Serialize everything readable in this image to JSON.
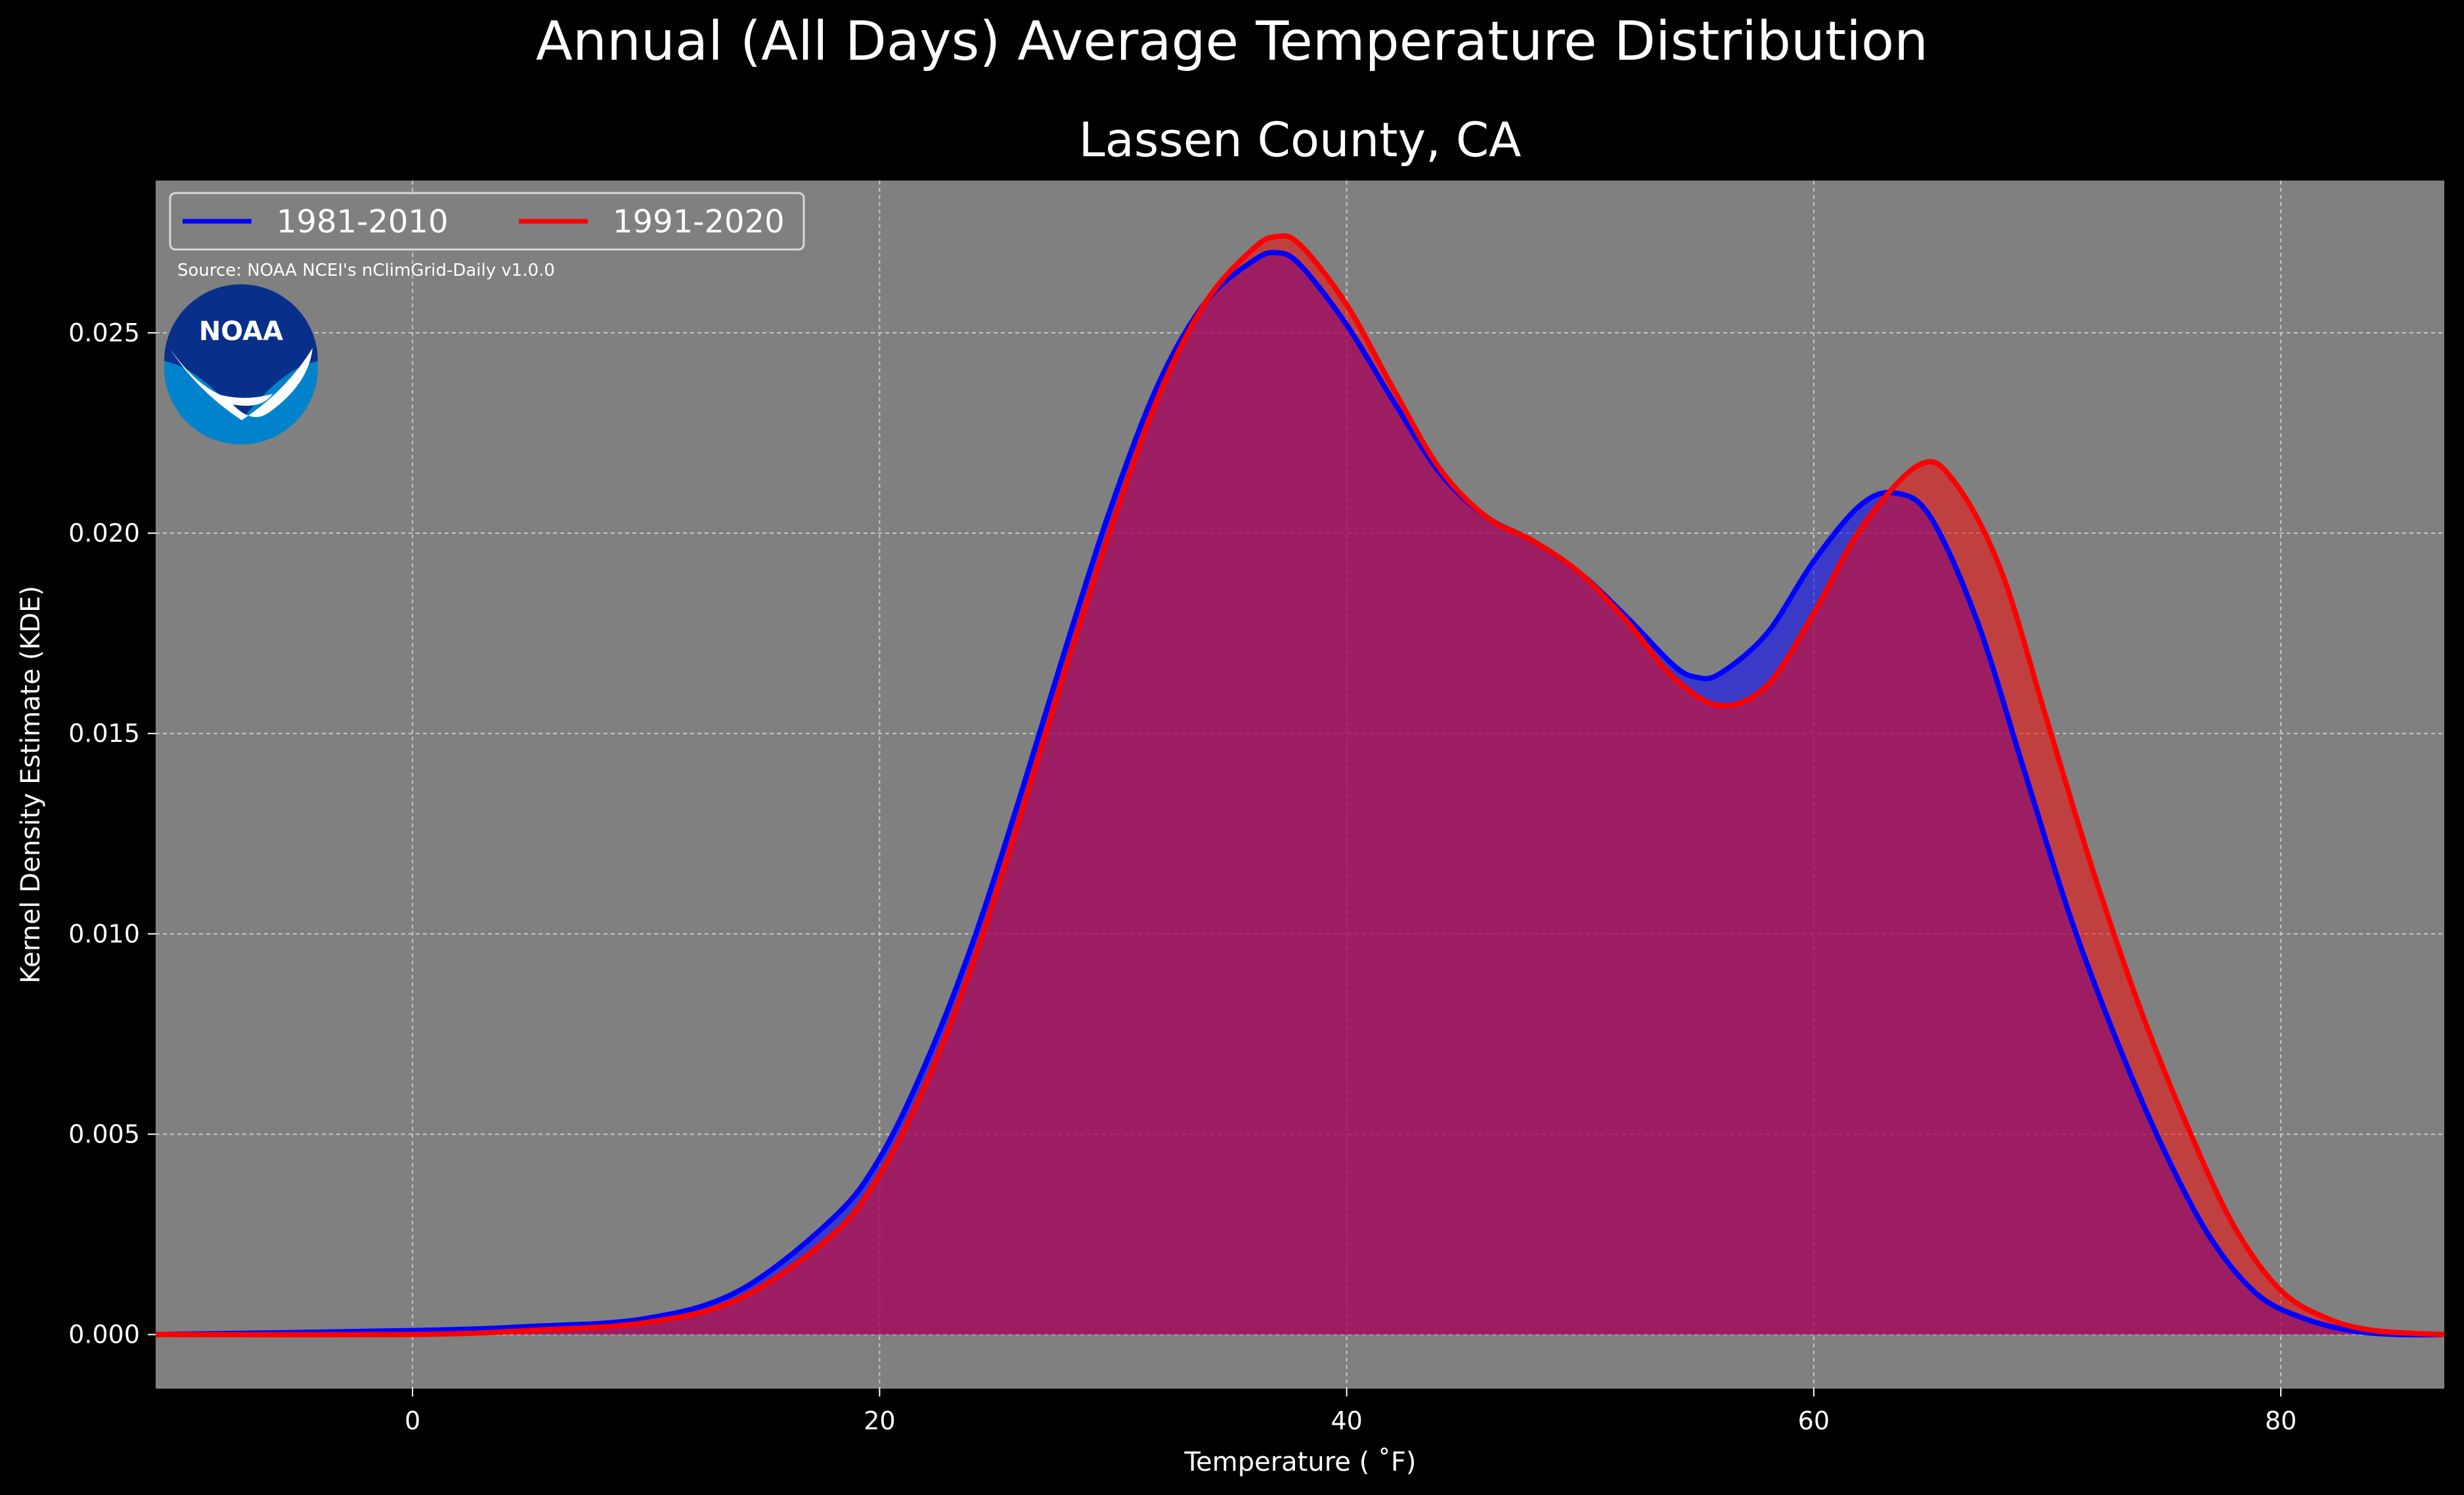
{
  "suptitle": "Annual (All Days) Average Temperature Distribution",
  "title": "Lassen County, CA",
  "source": "Source: NOAA NCEI's nClimGrid-Daily v1.0.0",
  "logo": {
    "icon": "noaa-logo",
    "text": "NOAA"
  },
  "colors": {
    "background": "#000000",
    "plot_bg": "#808080",
    "series_1981": "#0000ff",
    "series_1991": "#ff0000",
    "fill_overlap": "#9e1e5c"
  },
  "chart_data": {
    "type": "area",
    "xlabel": "Temperature ($^\\circ$F)",
    "xlabel_display": "Temperature ( ˚F)",
    "ylabel": "Kernel Density Estimate (KDE)",
    "xlim": [
      -11,
      87
    ],
    "ylim": [
      -0.00135,
      0.0288
    ],
    "xticks": [
      0,
      20,
      40,
      60,
      80
    ],
    "yticks": [
      0.0,
      0.005,
      0.01,
      0.015,
      0.02,
      0.025
    ],
    "ytick_labels": [
      "0.000",
      "0.005",
      "0.010",
      "0.015",
      "0.020",
      "0.025"
    ],
    "grid": true,
    "legend_position": "top-left",
    "series": [
      {
        "name": "1981-2010",
        "color": "#0000ff",
        "x": [
          -11,
          0,
          5,
          10,
          14,
          18,
          20,
          22,
          24,
          26,
          28,
          30,
          32,
          34,
          36,
          37,
          38,
          40,
          42,
          44,
          46,
          48,
          50,
          52,
          54,
          55,
          56,
          58,
          60,
          62,
          63.5,
          65,
          67,
          69,
          71,
          73,
          75,
          77,
          79,
          81,
          83,
          85,
          87
        ],
        "y": [
          0.0,
          0.0001,
          0.0002,
          0.0004,
          0.0011,
          0.0029,
          0.0044,
          0.0068,
          0.0098,
          0.0134,
          0.0172,
          0.0208,
          0.0238,
          0.0258,
          0.0268,
          0.027,
          0.0267,
          0.0252,
          0.0233,
          0.0215,
          0.0204,
          0.0198,
          0.019,
          0.0179,
          0.0167,
          0.0164,
          0.0165,
          0.0175,
          0.0193,
          0.0207,
          0.021,
          0.0204,
          0.0178,
          0.0141,
          0.0104,
          0.0073,
          0.0046,
          0.0024,
          0.001,
          0.0004,
          0.0001,
          0.0,
          0.0
        ]
      },
      {
        "name": "1991-2020",
        "color": "#ff0000",
        "x": [
          -11,
          0,
          5,
          10,
          14,
          18,
          20,
          22,
          24,
          26,
          28,
          30,
          32,
          34,
          36,
          37,
          38,
          40,
          42,
          44,
          46,
          48,
          50,
          52,
          54,
          56,
          58,
          60,
          62,
          64.5,
          66,
          68,
          70,
          72,
          74,
          76,
          78,
          80,
          82,
          84,
          87
        ],
        "y": [
          0.0,
          0.0,
          0.0001,
          0.0003,
          0.0009,
          0.0025,
          0.004,
          0.0063,
          0.0093,
          0.0129,
          0.0167,
          0.0203,
          0.0235,
          0.0258,
          0.0271,
          0.0274,
          0.0272,
          0.0257,
          0.0236,
          0.0216,
          0.0204,
          0.0198,
          0.019,
          0.0178,
          0.0164,
          0.0157,
          0.0162,
          0.018,
          0.0201,
          0.0217,
          0.0213,
          0.0191,
          0.0153,
          0.0115,
          0.0081,
          0.0052,
          0.0027,
          0.0011,
          0.0004,
          0.0001,
          0.0
        ]
      }
    ]
  }
}
